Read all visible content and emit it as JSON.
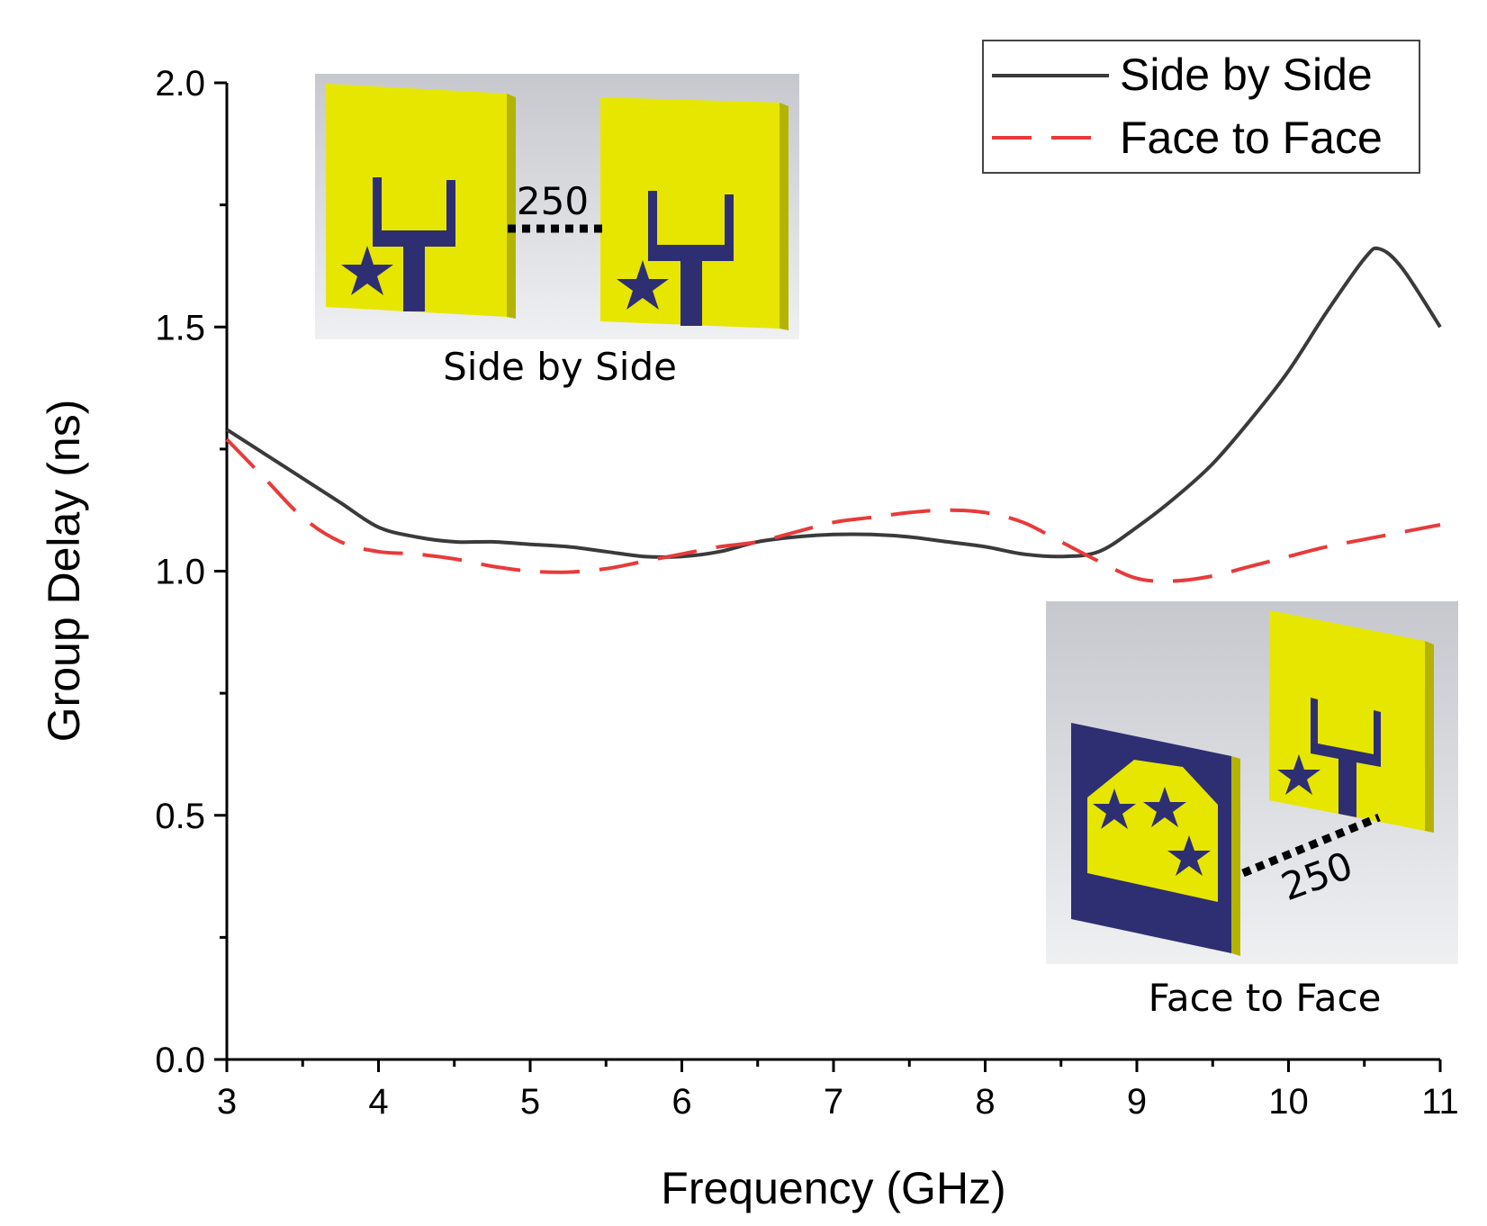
{
  "chart_data": {
    "type": "line",
    "xlabel": "Frequency (GHz)",
    "ylabel": "Group Delay (ns)",
    "xlim": [
      3,
      11
    ],
    "ylim": [
      0,
      2
    ],
    "xticks": [
      3,
      4,
      5,
      6,
      7,
      8,
      9,
      10,
      11
    ],
    "xtick_labels": [
      "3",
      "4",
      "5",
      "6",
      "7",
      "8",
      "9",
      "10",
      "11"
    ],
    "yticks": [
      0,
      0.5,
      1,
      1.5,
      2
    ],
    "ytick_labels": [
      "0.0",
      "0.5",
      "1.0",
      "1.5",
      "2.0"
    ],
    "grid": false,
    "legend": "top-right",
    "series": [
      {
        "name": "Side by Side",
        "color": "#3a3a3a",
        "style": "solid",
        "x": [
          3.0,
          3.25,
          3.5,
          3.75,
          4.0,
          4.25,
          4.5,
          4.75,
          5.0,
          5.25,
          5.5,
          5.75,
          6.0,
          6.25,
          6.5,
          6.75,
          7.0,
          7.25,
          7.5,
          7.75,
          8.0,
          8.25,
          8.5,
          8.75,
          9.0,
          9.25,
          9.5,
          9.75,
          10.0,
          10.25,
          10.5,
          10.6,
          10.75,
          11.0
        ],
        "values": [
          1.29,
          1.24,
          1.19,
          1.14,
          1.09,
          1.07,
          1.06,
          1.06,
          1.055,
          1.05,
          1.04,
          1.03,
          1.03,
          1.04,
          1.06,
          1.07,
          1.075,
          1.075,
          1.07,
          1.06,
          1.05,
          1.035,
          1.03,
          1.04,
          1.09,
          1.15,
          1.22,
          1.31,
          1.41,
          1.53,
          1.64,
          1.66,
          1.62,
          1.5
        ]
      },
      {
        "name": "Face to Face",
        "color": "#e83a3a",
        "style": "dashed",
        "x": [
          3.0,
          3.25,
          3.5,
          3.75,
          4.0,
          4.25,
          4.5,
          4.75,
          5.0,
          5.25,
          5.5,
          5.75,
          6.0,
          6.25,
          6.5,
          6.75,
          7.0,
          7.25,
          7.5,
          7.75,
          8.0,
          8.25,
          8.5,
          8.75,
          9.0,
          9.25,
          9.5,
          9.75,
          10.0,
          10.25,
          10.5,
          10.75,
          11.0
        ],
        "values": [
          1.27,
          1.19,
          1.11,
          1.06,
          1.04,
          1.035,
          1.025,
          1.01,
          1.0,
          0.998,
          1.005,
          1.02,
          1.035,
          1.05,
          1.06,
          1.08,
          1.1,
          1.11,
          1.12,
          1.125,
          1.12,
          1.1,
          1.06,
          1.02,
          0.985,
          0.98,
          0.99,
          1.01,
          1.03,
          1.05,
          1.065,
          1.08,
          1.095
        ]
      }
    ],
    "annotations": {
      "inset_top_label": "Side by Side",
      "inset_top_distance": "250",
      "inset_bottom_label": "Face to Face",
      "inset_bottom_distance": "250"
    }
  },
  "colors": {
    "patch_yellow": "#e6e600",
    "patch_edge": "#b4b400",
    "ground_navy": "#2e2e72",
    "inset_bg_top": "#c8cad0",
    "inset_bg_bottom": "#eceef0"
  }
}
